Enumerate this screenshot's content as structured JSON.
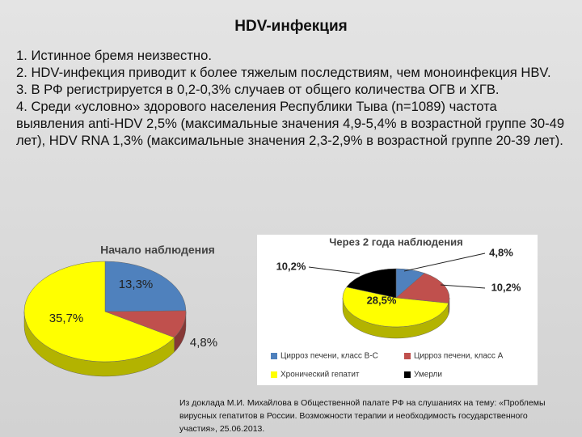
{
  "title": "HDV-инфекция",
  "items": [
    "1. Истинное бремя неизвестно.",
    "2. HDV-инфекция приводит к более тяжелым последствиям, чем моноинфекция HBV.",
    "3. В РФ регистрируется  в 0,2-0,3% случаев от общего количества ОГВ и ХГВ.",
    "4. Среди «условно» здорового населения Республики Тыва (n=1089) частота выявления anti-HDV 2,5% (максимальные значения 4,9-5,4% в возрастной группе 30-49 лет), HDV RNA 1,3% (максимальные значения 2,3-2,9% в возрастной группе 20-39 лет)."
  ],
  "chart_data": [
    {
      "type": "pie",
      "title": "Начало наблюдения",
      "values": [
        13.3,
        4.8,
        35.7
      ],
      "value_labels": [
        "13,3%",
        "4,8%",
        "35,7%"
      ],
      "colors": [
        "#4f81bd",
        "#c0504d",
        "#ffff00"
      ]
    },
    {
      "type": "pie",
      "title": "Через 2 года наблюдения",
      "categories": [
        "Цирроз печени, класс В-С",
        "Цирроз печени, класс А",
        "Хронический гепатит",
        "Умерли"
      ],
      "values": [
        4.8,
        10.2,
        28.5,
        10.2
      ],
      "value_labels": [
        "4,8%",
        "10,2%",
        "28,5%",
        "10,2%"
      ],
      "colors": [
        "#4f81bd",
        "#c0504d",
        "#ffff00",
        "#000000"
      ]
    }
  ],
  "footnote": "Из доклада М.И. Михайлова в Общественной палате  РФ на слушаниях на тему: «Проблемы вирусных гепатитов в России. Возможности терапии и необходимость государственного участия», 25.06.2013."
}
